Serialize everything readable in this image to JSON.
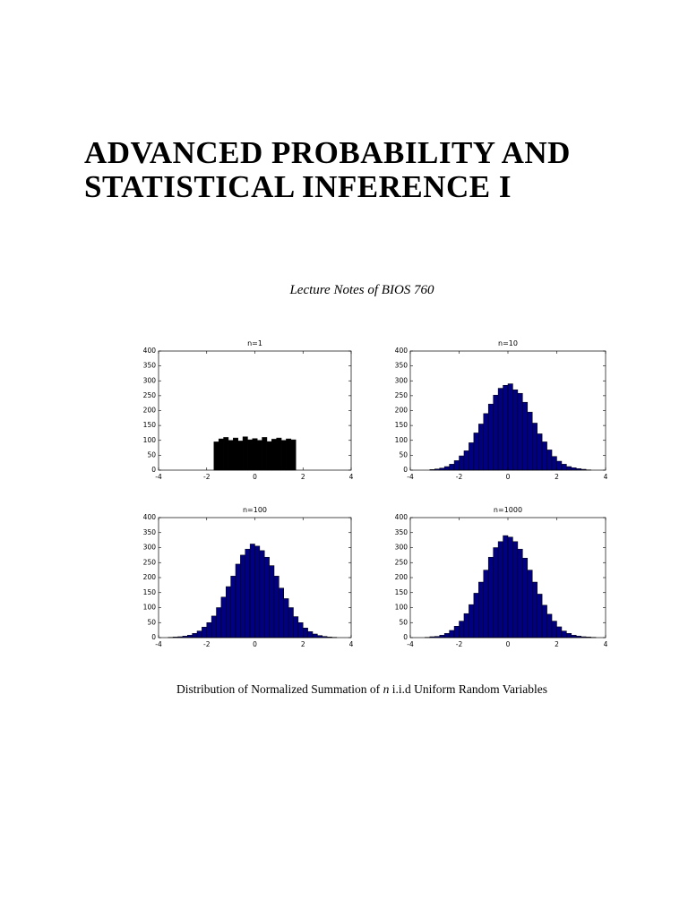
{
  "header": {
    "title_lines": [
      "ADVANCED PROBABILITY AND",
      "STATISTICAL INFERENCE I"
    ],
    "subtitle": "Lecture Notes of BIOS 760"
  },
  "chart_data": [
    {
      "type": "histogram",
      "title": "n=1",
      "color": "#000000",
      "bins": [
        -1.7,
        -1.5,
        -1.3,
        -1.1,
        -0.9,
        -0.7,
        -0.5,
        -0.3,
        -0.1,
        0.1,
        0.3,
        0.5,
        0.7,
        0.9,
        1.1,
        1.3,
        1.5,
        1.7
      ],
      "values": [
        95,
        105,
        110,
        100,
        108,
        98,
        112,
        102,
        106,
        100,
        110,
        96,
        104,
        108,
        100,
        105,
        102
      ],
      "xlim": [
        -4,
        4
      ],
      "xticks": [
        -4,
        -2,
        0,
        2,
        4
      ],
      "ylim": [
        0,
        400
      ],
      "yticks": [
        0,
        50,
        100,
        150,
        200,
        250,
        300,
        350,
        400
      ]
    },
    {
      "type": "histogram",
      "title": "n=10",
      "color": "#000080",
      "bins": [
        -3.2,
        -3.0,
        -2.8,
        -2.6,
        -2.4,
        -2.2,
        -2.0,
        -1.8,
        -1.6,
        -1.4,
        -1.2,
        -1.0,
        -0.8,
        -0.6,
        -0.4,
        -0.2,
        0,
        0.2,
        0.4,
        0.6,
        0.8,
        1.0,
        1.2,
        1.4,
        1.6,
        1.8,
        2.0,
        2.2,
        2.4,
        2.6,
        2.8,
        3.0,
        3.2,
        3.4
      ],
      "values": [
        2,
        4,
        7,
        12,
        20,
        32,
        48,
        65,
        92,
        125,
        155,
        190,
        222,
        252,
        275,
        285,
        290,
        270,
        258,
        228,
        195,
        158,
        122,
        95,
        68,
        46,
        30,
        20,
        12,
        8,
        5,
        3,
        1
      ],
      "xlim": [
        -4,
        4
      ],
      "xticks": [
        -4,
        -2,
        0,
        2,
        4
      ],
      "ylim": [
        0,
        400
      ],
      "yticks": [
        0,
        50,
        100,
        150,
        200,
        250,
        300,
        350,
        400
      ]
    },
    {
      "type": "histogram",
      "title": "n=100",
      "color": "#000080",
      "bins": [
        -3.6,
        -3.4,
        -3.2,
        -3.0,
        -2.8,
        -2.6,
        -2.4,
        -2.2,
        -2.0,
        -1.8,
        -1.6,
        -1.4,
        -1.2,
        -1.0,
        -0.8,
        -0.6,
        -0.4,
        -0.2,
        0,
        0.2,
        0.4,
        0.6,
        0.8,
        1.0,
        1.2,
        1.4,
        1.6,
        1.8,
        2.0,
        2.2,
        2.4,
        2.6,
        2.8,
        3.0,
        3.2,
        3.4
      ],
      "values": [
        1,
        2,
        3,
        5,
        8,
        14,
        22,
        35,
        50,
        72,
        100,
        135,
        170,
        205,
        245,
        275,
        295,
        312,
        305,
        290,
        268,
        240,
        205,
        165,
        130,
        100,
        70,
        50,
        32,
        20,
        12,
        7,
        4,
        2,
        1
      ],
      "xlim": [
        -4,
        4
      ],
      "xticks": [
        -4,
        -2,
        0,
        2,
        4
      ],
      "ylim": [
        0,
        400
      ],
      "yticks": [
        0,
        50,
        100,
        150,
        200,
        250,
        300,
        350,
        400
      ]
    },
    {
      "type": "histogram",
      "title": "n=1000",
      "color": "#000080",
      "bins": [
        -3.4,
        -3.2,
        -3.0,
        -2.8,
        -2.6,
        -2.4,
        -2.2,
        -2.0,
        -1.8,
        -1.6,
        -1.4,
        -1.2,
        -1.0,
        -0.8,
        -0.6,
        -0.4,
        -0.2,
        0,
        0.2,
        0.4,
        0.6,
        0.8,
        1.0,
        1.2,
        1.4,
        1.6,
        1.8,
        2.0,
        2.2,
        2.4,
        2.6,
        2.8,
        3.0,
        3.2,
        3.4,
        3.6
      ],
      "values": [
        1,
        3,
        4,
        8,
        14,
        24,
        38,
        55,
        80,
        110,
        148,
        185,
        225,
        268,
        300,
        320,
        340,
        335,
        320,
        295,
        265,
        225,
        185,
        145,
        108,
        78,
        55,
        36,
        22,
        14,
        8,
        5,
        3,
        2,
        1
      ],
      "xlim": [
        -4,
        4
      ],
      "xticks": [
        -4,
        -2,
        0,
        2,
        4
      ],
      "ylim": [
        0,
        400
      ],
      "yticks": [
        0,
        50,
        100,
        150,
        200,
        250,
        300,
        350,
        400
      ]
    }
  ],
  "caption": {
    "before": "Distribution of Normalized Summation of",
    "variable": "n",
    "after": "i.i.d Uniform Random Variables"
  }
}
